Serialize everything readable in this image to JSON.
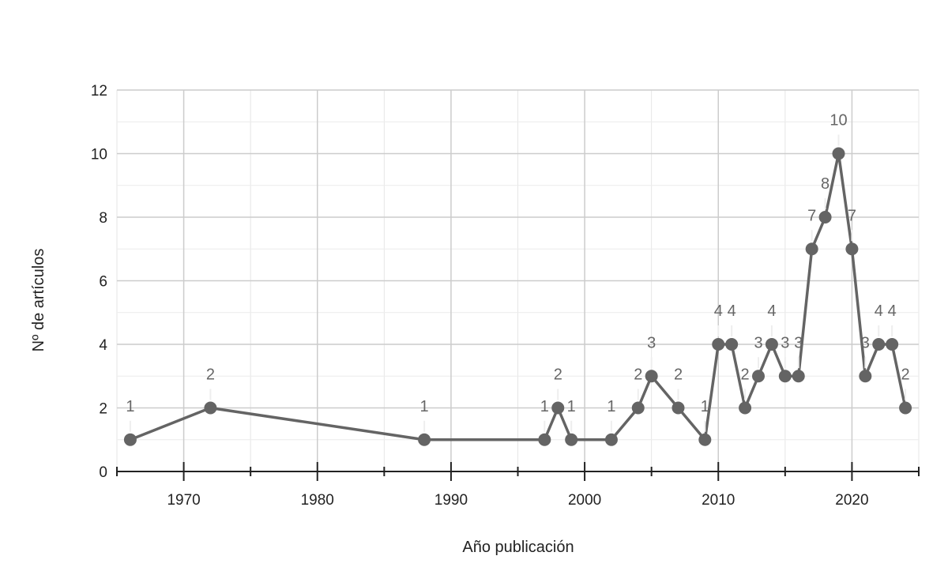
{
  "chart_data": {
    "type": "line",
    "title": "",
    "xlabel": "Año publicación",
    "ylabel": "Nº de artículos",
    "xlim": [
      1965,
      2025
    ],
    "ylim": [
      0,
      12
    ],
    "x_ticks": [
      1970,
      1980,
      1990,
      2000,
      2010,
      2020
    ],
    "y_ticks": [
      0,
      2,
      4,
      6,
      8,
      10,
      12
    ],
    "grid": true,
    "legend": "none",
    "line_color": "#646464",
    "label_color": "#666666",
    "series": [
      {
        "x": [
          1966,
          1972,
          1988,
          1997,
          1998,
          1999,
          2002,
          2004,
          2005,
          2007,
          2009,
          2010,
          2011,
          2012,
          2013,
          2014,
          2015,
          2016,
          2017,
          2018,
          2019,
          2020,
          2021,
          2022,
          2023,
          2024
        ],
        "values": [
          1,
          2,
          1,
          1,
          2,
          1,
          1,
          2,
          3,
          2,
          1,
          4,
          4,
          2,
          3,
          4,
          3,
          3,
          7,
          8,
          10,
          7,
          3,
          4,
          4,
          2
        ]
      }
    ]
  }
}
